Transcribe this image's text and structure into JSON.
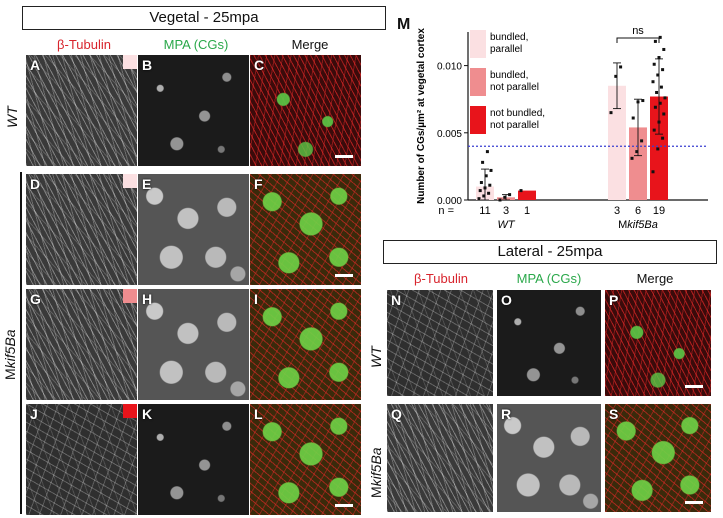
{
  "vegetal": {
    "title": "Vegetal - 25mpa",
    "columns": [
      "β-Tubulin",
      "MPA (CGs)",
      "Merge"
    ],
    "rows": [
      {
        "label": "WT",
        "letters": [
          "A",
          "B",
          "C"
        ],
        "swatch": "#fbe0e2"
      },
      {
        "label": "",
        "letters": [
          "D",
          "E",
          "F"
        ],
        "swatch": "#fbe0e2"
      },
      {
        "label": "",
        "letters": [
          "G",
          "H",
          "I"
        ],
        "swatch": "#ef8d8f"
      },
      {
        "label": "",
        "letters": [
          "J",
          "K",
          "L"
        ],
        "swatch": "#e8141b"
      }
    ],
    "group_label": "Mkif5Ba"
  },
  "lateral": {
    "title": "Lateral - 25mpa",
    "columns": [
      "β-Tubulin",
      "MPA (CGs)",
      "Merge"
    ],
    "rows": [
      {
        "label": "WT",
        "letters": [
          "N",
          "O",
          "P"
        ]
      },
      {
        "label": "Mkif5Ba",
        "letters": [
          "Q",
          "R",
          "S"
        ]
      }
    ]
  },
  "chart_letter": "M",
  "chart_data": {
    "type": "bar",
    "ylabel": "Number of CGs/µm² at vegetal cortex",
    "ylim": [
      0,
      0.0125
    ],
    "yticks": [
      "0.000",
      "0.005",
      "0.010"
    ],
    "yticks_values": [
      0,
      0.005,
      0.01
    ],
    "n_prefix": "n =",
    "groups": [
      {
        "name": "WT",
        "bars": [
          {
            "category": "bundled, parallel",
            "value": 0.001,
            "err": 0.0013,
            "n": "11",
            "color": "#fbe0e2",
            "points": [
              0.0001,
              0.0003,
              0.0005,
              0.0007,
              0.0009,
              0.0011,
              0.0013,
              0.0018,
              0.0022,
              0.0028,
              0.0036
            ]
          },
          {
            "category": "bundled, not parallel",
            "value": 0.0002,
            "err": 0.0002,
            "n": "3",
            "color": "#ef8d8f",
            "points": [
              0.0,
              0.0002,
              0.0004
            ]
          },
          {
            "category": "not bundled, not parallel",
            "value": 0.0007,
            "err": 0,
            "n": "1",
            "color": "#e8141b",
            "points": [
              0.0007
            ]
          }
        ]
      },
      {
        "name": "Mkif5Ba",
        "bars": [
          {
            "category": "bundled, parallel",
            "value": 0.0085,
            "err": 0.0017,
            "n": "3",
            "color": "#fbe0e2",
            "points": [
              0.0065,
              0.0092,
              0.0099
            ]
          },
          {
            "category": "bundled, not parallel",
            "value": 0.0054,
            "err": 0.0021,
            "n": "6",
            "color": "#ef8d8f",
            "points": [
              0.0031,
              0.0036,
              0.0044,
              0.0061,
              0.0073,
              0.0074
            ]
          },
          {
            "category": "not bundled, not parallel",
            "value": 0.0077,
            "err": 0.0028,
            "n": "19",
            "color": "#e8141b",
            "points": [
              0.0021,
              0.0038,
              0.0046,
              0.0052,
              0.0058,
              0.0064,
              0.0069,
              0.0072,
              0.0076,
              0.008,
              0.0084,
              0.0088,
              0.0093,
              0.0097,
              0.0101,
              0.0106,
              0.0112,
              0.0118,
              0.0121
            ]
          }
        ]
      }
    ],
    "legend": [
      {
        "label": "bundled, parallel",
        "color": "#fbe0e2"
      },
      {
        "label": "bundled, not parallel",
        "color": "#ef8d8f"
      },
      {
        "label": "not bundled, not parallel",
        "color": "#e8141b"
      }
    ],
    "reference_line": 0.004,
    "reference_color": "#3a3fd1",
    "annotation": "ns"
  }
}
